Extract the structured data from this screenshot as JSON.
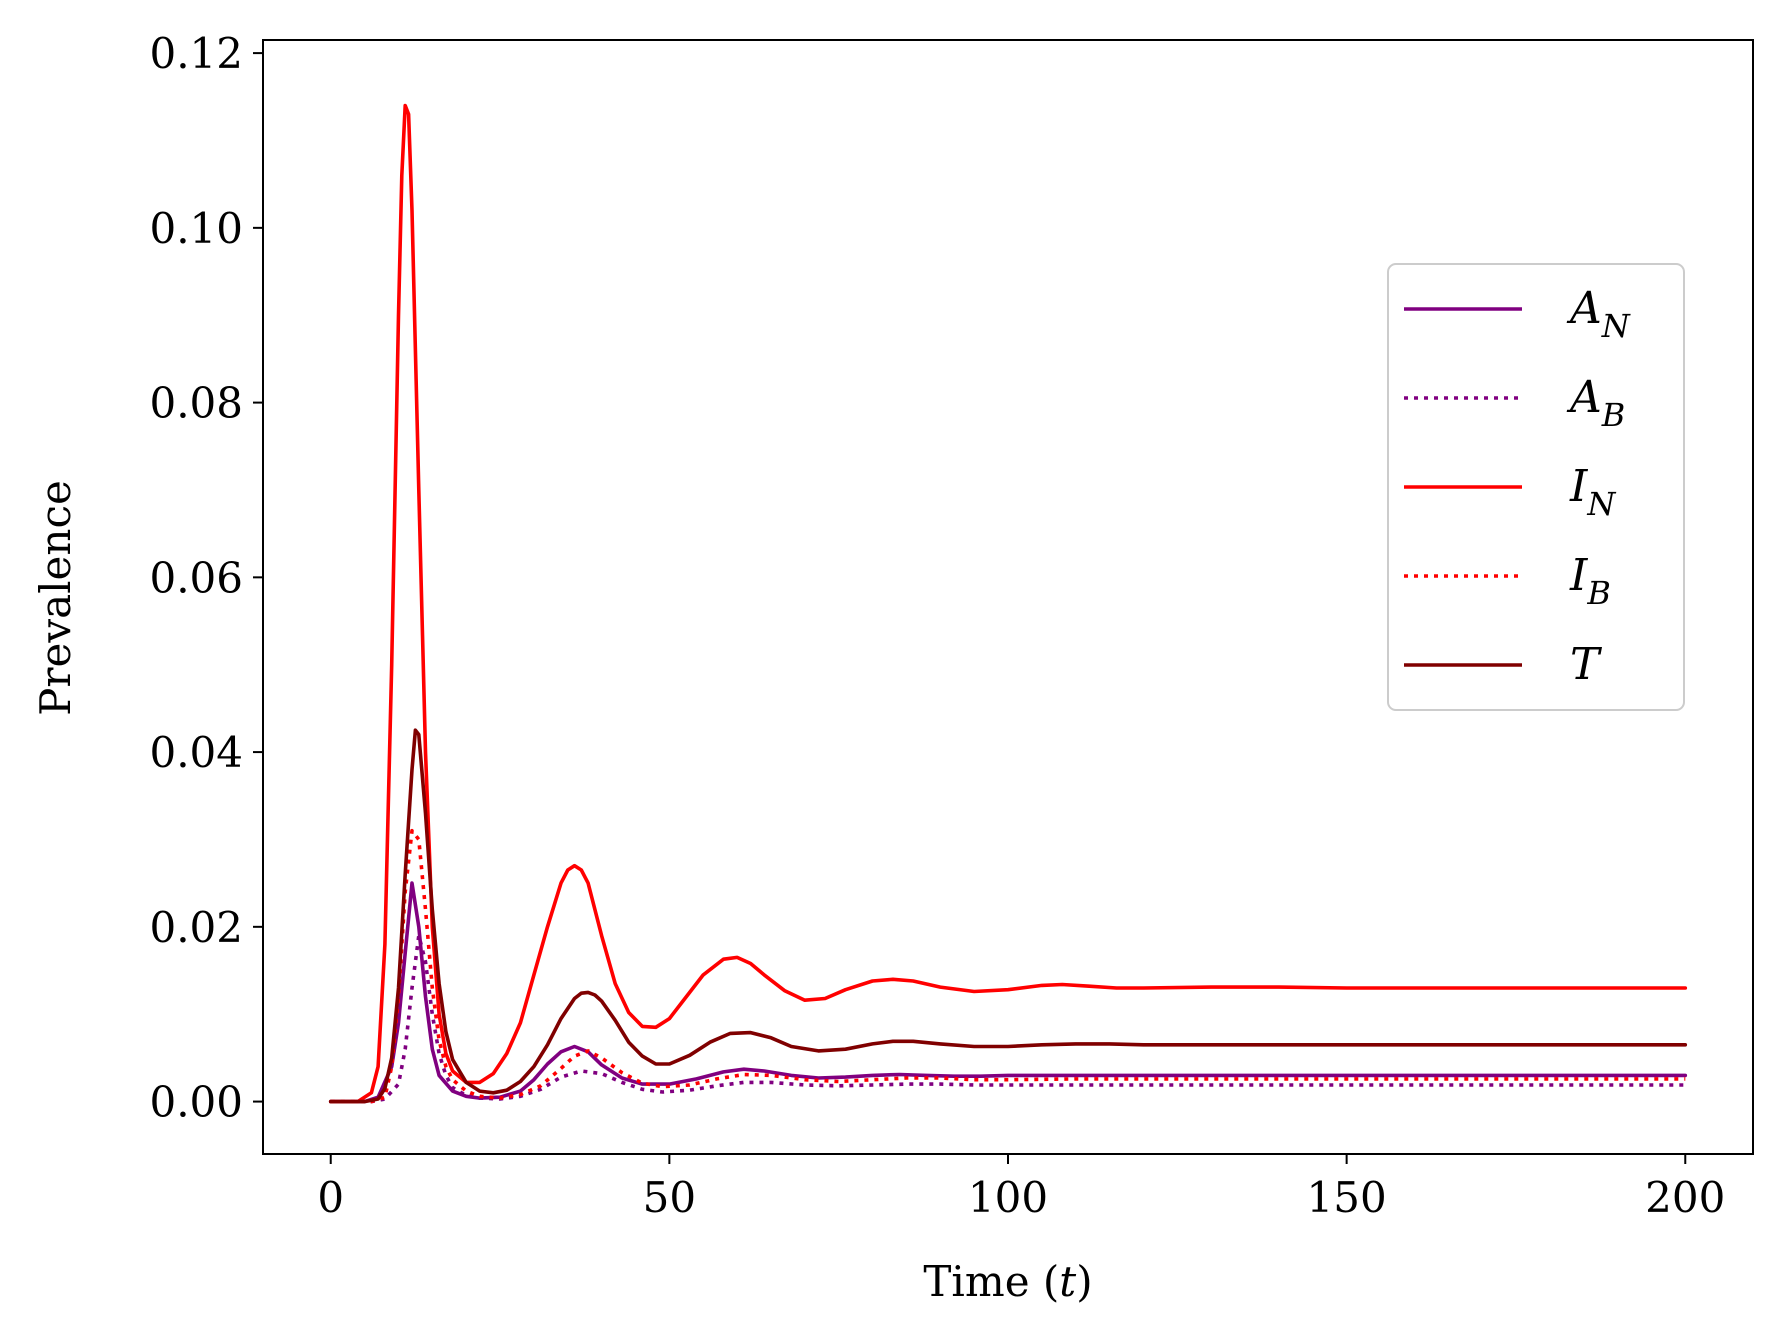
{
  "chart_data": {
    "type": "line",
    "title": "",
    "xlabel": "Time (t)",
    "xlabel_parts": {
      "prefix": "Time (",
      "var": "t",
      "suffix": ")"
    },
    "ylabel": "Prevalence",
    "xlim": [
      -10,
      210
    ],
    "ylim": [
      -0.006,
      0.1215
    ],
    "x_ticks": [
      0,
      50,
      100,
      150,
      200
    ],
    "x_tick_labels": [
      "0",
      "50",
      "100",
      "150",
      "200"
    ],
    "y_ticks": [
      0.0,
      0.02,
      0.04,
      0.06,
      0.08,
      0.1,
      0.12
    ],
    "y_tick_labels": [
      "0.00",
      "0.02",
      "0.04",
      "0.06",
      "0.08",
      "0.10",
      "0.12"
    ],
    "grid": false,
    "legend_position": "center-right",
    "series": [
      {
        "name": "A_N",
        "label_main": "A",
        "label_sub": "N",
        "color": "#800080",
        "style": "solid",
        "x": [
          0,
          5,
          7,
          9,
          10,
          11,
          12,
          13,
          14,
          15,
          16,
          18,
          20,
          22,
          25,
          28,
          30,
          32,
          34,
          36,
          38,
          40,
          43,
          46,
          50,
          54,
          58,
          61,
          64,
          68,
          72,
          76,
          80,
          84,
          88,
          92,
          96,
          100,
          105,
          110,
          120,
          130,
          150,
          170,
          200
        ],
        "y": [
          0,
          0,
          0.0005,
          0.004,
          0.009,
          0.017,
          0.025,
          0.02,
          0.012,
          0.006,
          0.003,
          0.0012,
          0.0006,
          0.0004,
          0.0005,
          0.0012,
          0.0025,
          0.0043,
          0.0057,
          0.0063,
          0.0057,
          0.0042,
          0.0027,
          0.002,
          0.002,
          0.0026,
          0.0034,
          0.0037,
          0.0035,
          0.003,
          0.0027,
          0.0028,
          0.003,
          0.0031,
          0.003,
          0.0029,
          0.0029,
          0.003,
          0.003,
          0.003,
          0.003,
          0.003,
          0.003,
          0.003,
          0.003
        ]
      },
      {
        "name": "A_B",
        "label_main": "A",
        "label_sub": "B",
        "color": "#800080",
        "style": "dotted",
        "x": [
          0,
          6,
          8,
          10,
          11,
          12,
          13,
          14,
          15,
          16,
          17,
          18,
          20,
          22,
          25,
          28,
          31,
          34,
          37,
          40,
          43,
          46,
          49,
          53,
          57,
          61,
          65,
          70,
          75,
          80,
          85,
          90,
          95,
          100,
          110,
          120,
          140,
          170,
          200
        ],
        "y": [
          0,
          0,
          0.0003,
          0.002,
          0.006,
          0.013,
          0.019,
          0.016,
          0.01,
          0.0055,
          0.003,
          0.0016,
          0.0007,
          0.0004,
          0.0003,
          0.0006,
          0.0014,
          0.0028,
          0.0035,
          0.0032,
          0.0022,
          0.0014,
          0.0011,
          0.0013,
          0.0018,
          0.0022,
          0.0022,
          0.0019,
          0.0018,
          0.0019,
          0.002,
          0.002,
          0.0019,
          0.0019,
          0.0019,
          0.0019,
          0.0019,
          0.0019,
          0.0019
        ]
      },
      {
        "name": "I_N",
        "label_main": "I",
        "label_sub": "N",
        "color": "#ff0000",
        "style": "solid",
        "x": [
          0,
          4,
          6,
          7,
          8,
          9,
          10,
          10.5,
          11,
          11.5,
          12,
          13,
          14,
          15,
          16,
          17,
          18,
          20,
          22,
          24,
          26,
          28,
          30,
          32,
          34,
          35,
          36,
          37,
          38,
          40,
          42,
          44,
          46,
          48,
          50,
          52,
          55,
          58,
          60,
          62,
          64,
          67,
          70,
          73,
          76,
          80,
          83,
          86,
          90,
          95,
          100,
          105,
          108,
          112,
          116,
          120,
          130,
          140,
          150,
          170,
          200
        ],
        "y": [
          0,
          0,
          0.001,
          0.004,
          0.018,
          0.05,
          0.09,
          0.106,
          0.114,
          0.113,
          0.102,
          0.07,
          0.04,
          0.02,
          0.01,
          0.0055,
          0.0035,
          0.0022,
          0.0022,
          0.0032,
          0.0055,
          0.009,
          0.0145,
          0.02,
          0.025,
          0.0265,
          0.027,
          0.0265,
          0.025,
          0.019,
          0.0135,
          0.0102,
          0.0086,
          0.0085,
          0.0095,
          0.0115,
          0.0145,
          0.0163,
          0.0165,
          0.0158,
          0.0145,
          0.0127,
          0.0116,
          0.0118,
          0.0128,
          0.0138,
          0.014,
          0.0138,
          0.0131,
          0.0126,
          0.0128,
          0.0133,
          0.0134,
          0.0132,
          0.013,
          0.013,
          0.0131,
          0.0131,
          0.013,
          0.013,
          0.013
        ]
      },
      {
        "name": "I_B",
        "label_main": "I",
        "label_sub": "B",
        "color": "#ff0000",
        "style": "dotted",
        "x": [
          0,
          6,
          8,
          9,
          10,
          11,
          12,
          13,
          14,
          15,
          16,
          17,
          18,
          20,
          22,
          25,
          28,
          31,
          34,
          36,
          38,
          40,
          43,
          46,
          49,
          53,
          57,
          61,
          65,
          70,
          75,
          80,
          85,
          90,
          95,
          100,
          110,
          120,
          140,
          170,
          200
        ],
        "y": [
          0,
          0,
          0.0005,
          0.004,
          0.012,
          0.024,
          0.031,
          0.03,
          0.022,
          0.013,
          0.007,
          0.004,
          0.0025,
          0.0012,
          0.0006,
          0.0004,
          0.0008,
          0.0018,
          0.0038,
          0.0052,
          0.0058,
          0.005,
          0.0033,
          0.0021,
          0.0017,
          0.0019,
          0.0026,
          0.0031,
          0.003,
          0.0025,
          0.0023,
          0.0025,
          0.0027,
          0.0027,
          0.0025,
          0.0025,
          0.0026,
          0.0026,
          0.0026,
          0.0026,
          0.0026
        ]
      },
      {
        "name": "T",
        "label_main": "T",
        "label_sub": "",
        "color": "#800000",
        "style": "solid",
        "x": [
          0,
          5,
          7,
          8,
          9,
          10,
          11,
          12,
          12.5,
          13,
          14,
          15,
          16,
          17,
          18,
          20,
          22,
          24,
          26,
          28,
          30,
          32,
          34,
          36,
          37,
          38,
          39,
          40,
          42,
          44,
          46,
          48,
          50,
          53,
          56,
          59,
          62,
          65,
          68,
          72,
          76,
          80,
          83,
          86,
          90,
          95,
          100,
          105,
          110,
          115,
          120,
          130,
          140,
          160,
          180,
          200
        ],
        "y": [
          0,
          0,
          0.0003,
          0.0015,
          0.005,
          0.013,
          0.026,
          0.038,
          0.0425,
          0.042,
          0.033,
          0.022,
          0.0135,
          0.008,
          0.0048,
          0.0022,
          0.0012,
          0.001,
          0.0013,
          0.0023,
          0.004,
          0.0065,
          0.0095,
          0.0118,
          0.0124,
          0.0125,
          0.0122,
          0.0115,
          0.0093,
          0.0068,
          0.0052,
          0.0043,
          0.0043,
          0.0053,
          0.0068,
          0.0078,
          0.0079,
          0.0073,
          0.0063,
          0.0058,
          0.006,
          0.0066,
          0.0069,
          0.0069,
          0.0066,
          0.0063,
          0.0063,
          0.0065,
          0.0066,
          0.0066,
          0.0065,
          0.0065,
          0.0065,
          0.0065,
          0.0065,
          0.0065
        ]
      }
    ]
  }
}
